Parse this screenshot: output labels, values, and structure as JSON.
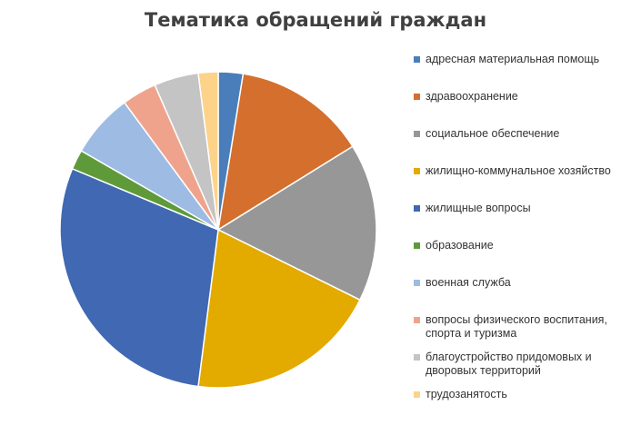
{
  "chart_data": {
    "type": "pie",
    "title": "Тематика обращений граждан",
    "legend_position": "right",
    "slices": [
      {
        "label": "адресная материальная помощь",
        "value": 2.5,
        "color": "#4a7ebb"
      },
      {
        "label": "здравоохранение",
        "value": 13.5,
        "color": "#d46f2e"
      },
      {
        "label": "социальное обеспечение",
        "value": 16.0,
        "color": "#979797"
      },
      {
        "label": "жилищно-коммунальное хозяйство",
        "value": 19.5,
        "color": "#e3aa00"
      },
      {
        "label": "жилищные вопросы",
        "value": 29.0,
        "color": "#4068b3"
      },
      {
        "label": "образование",
        "value": 2.0,
        "color": "#5f9a3a"
      },
      {
        "label": "военная служба",
        "value": 6.5,
        "color": "#9dbbe3"
      },
      {
        "label": "вопросы физического воспитания, спорта и туризма",
        "value": 3.5,
        "color": "#f0a38c"
      },
      {
        "label": "благоустройство придомовых и дворовых территорий",
        "value": 4.5,
        "color": "#c4c4c4"
      },
      {
        "label": "трудозанятость",
        "value": 2.0,
        "color": "#fdd38a"
      }
    ]
  }
}
